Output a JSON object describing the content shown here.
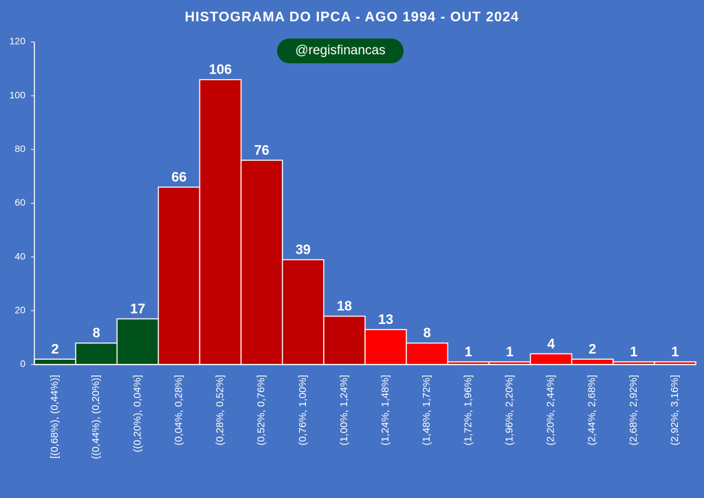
{
  "header": {
    "title": "HISTOGRAMA DO IPCA - AGO 1994 - OUT 2024",
    "handle": "@regisfinancas"
  },
  "colors": {
    "background": "#4472C4",
    "deflation": "#00521C",
    "mid_inflation": "#C00000",
    "high_inflation": "#FF0000",
    "bar_border": "#FFFFFF",
    "text": "#FFFFFF"
  },
  "chart_data": {
    "type": "bar",
    "title": "HISTOGRAMA DO IPCA - AGO 1994 - OUT 2024",
    "xlabel": "",
    "ylabel": "",
    "ylim": [
      0,
      120
    ],
    "yticks": [
      0,
      20,
      40,
      60,
      80,
      100,
      120
    ],
    "grid": false,
    "legend": "none",
    "categories": [
      "[(0,68%), (0,44%)]",
      "((0,44%), (0,20%)]",
      "((0,20%), 0,04%]",
      "(0,04%, 0,28%]",
      "(0,28%, 0,52%]",
      "(0,52%, 0,76%]",
      "(0,76%, 1,00%]",
      "(1,00%, 1,24%]",
      "(1,24%, 1,48%]",
      "(1,48%, 1,72%]",
      "(1,72%, 1,96%]",
      "(1,96%, 2,20%]",
      "(2,20%, 2,44%]",
      "(2,44%, 2,68%]",
      "(2,68%, 2,92%]",
      "(2,92%, 3,16%]"
    ],
    "values": [
      2,
      8,
      17,
      66,
      106,
      76,
      39,
      18,
      13,
      8,
      1,
      1,
      4,
      2,
      1,
      1
    ],
    "bar_colors": [
      "#00521C",
      "#00521C",
      "#00521C",
      "#C00000",
      "#C00000",
      "#C00000",
      "#C00000",
      "#C00000",
      "#FF0000",
      "#FF0000",
      "#FF0000",
      "#FF0000",
      "#FF0000",
      "#FF0000",
      "#FF0000",
      "#FF0000"
    ]
  }
}
